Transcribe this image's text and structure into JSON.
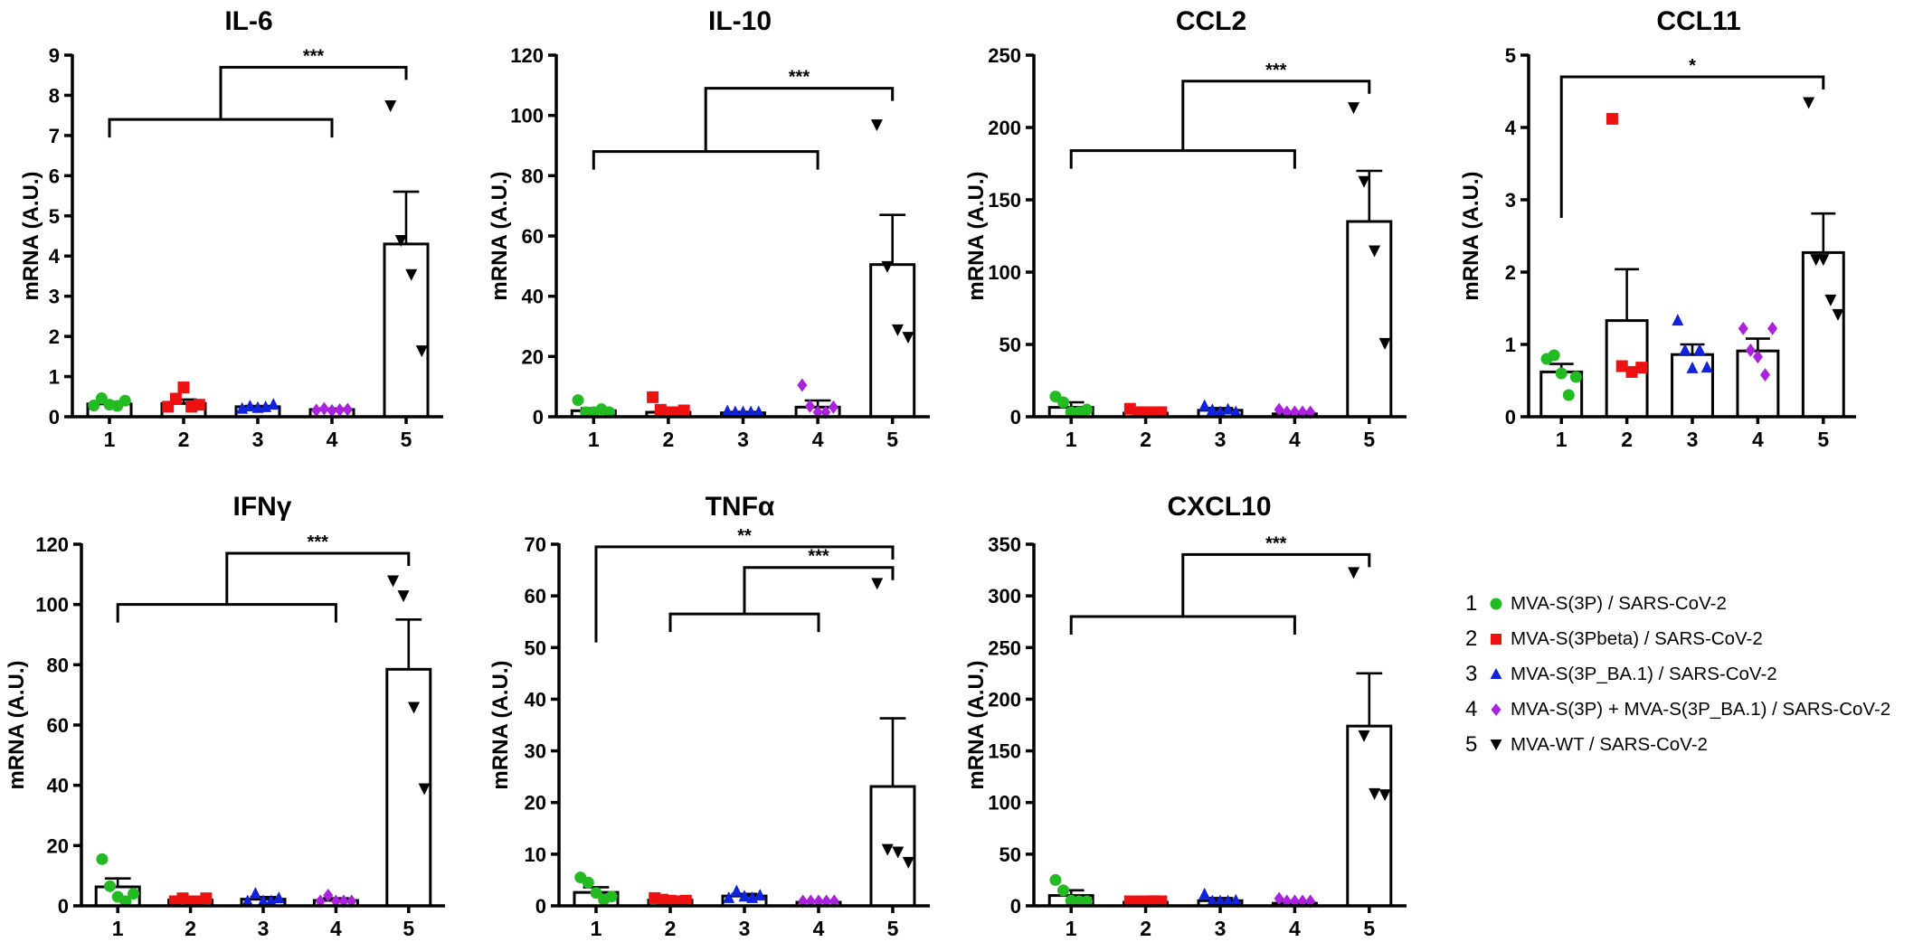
{
  "colors": {
    "1": "#22bb22",
    "2": "#ee1111",
    "3": "#1122dd",
    "4": "#aa22dd",
    "5": "#000000"
  },
  "legend": {
    "items": [
      {
        "num": "1",
        "marker": "circle",
        "label": "MVA-S(3P) / SARS-CoV-2"
      },
      {
        "num": "2",
        "marker": "square",
        "label": "MVA-S(3Pbeta) / SARS-CoV-2"
      },
      {
        "num": "3",
        "marker": "triangle-up",
        "label": "MVA-S(3P_BA.1) / SARS-CoV-2"
      },
      {
        "num": "4",
        "marker": "diamond",
        "label": "MVA-S(3P) + MVA-S(3P_BA.1) / SARS-CoV-2"
      },
      {
        "num": "5",
        "marker": "triangle-down",
        "label": "MVA-WT / SARS-CoV-2"
      }
    ]
  },
  "chart_data": [
    {
      "type": "bar",
      "title": "IL-6",
      "ylabel": "mRNA (A.U.)",
      "xlabel": "",
      "categories": [
        "1",
        "2",
        "3",
        "4",
        "5"
      ],
      "ylim": [
        0,
        9
      ],
      "yticks": [
        "0",
        "1",
        "2",
        "3",
        "4",
        "5",
        "6",
        "7",
        "8",
        "9"
      ],
      "means": [
        0.32,
        0.33,
        0.25,
        0.18,
        4.3
      ],
      "sem": [
        0.05,
        0.1,
        0.02,
        0.02,
        1.3
      ],
      "points": [
        [
          0.28,
          0.46,
          0.3,
          0.27,
          0.4
        ],
        [
          0.25,
          0.45,
          0.73,
          0.25,
          0.3
        ],
        [
          0.2,
          0.26,
          0.22,
          0.24,
          0.3
        ],
        [
          0.16,
          0.2,
          0.15,
          0.17,
          0.18
        ],
        [
          7.75,
          4.4,
          3.55,
          1.65
        ]
      ],
      "comparisons": [
        {
          "type": "grouped",
          "group": [
            "1",
            "4"
          ],
          "target": "5",
          "label": "***",
          "group_y": 7.4,
          "top_y": 8.7
        }
      ]
    },
    {
      "type": "bar",
      "title": "IL-10",
      "ylabel": "mRNA (A.U.)",
      "xlabel": "",
      "categories": [
        "1",
        "2",
        "3",
        "4",
        "5"
      ],
      "ylim": [
        0,
        120
      ],
      "yticks": [
        "0",
        "20",
        "40",
        "60",
        "80",
        "100",
        "120"
      ],
      "means": [
        2,
        1.5,
        1.3,
        3.2,
        50.5
      ],
      "sem": [
        0.8,
        1.5,
        0.3,
        2.2,
        16.5
      ],
      "points": [
        [
          5.5,
          1.5,
          1.2,
          2.5,
          1.2
        ],
        [
          6.5,
          2.3,
          0.8,
          0.9,
          2.1
        ],
        [
          1.8,
          1.4,
          1.2,
          1.0,
          1.5
        ],
        [
          10.5,
          3.5,
          1.0,
          0.6,
          3.2
        ],
        [
          97,
          50,
          29,
          26.5
        ]
      ],
      "comparisons": [
        {
          "type": "grouped",
          "group": [
            "1",
            "4"
          ],
          "target": "5",
          "label": "***",
          "group_y": 88,
          "top_y": 109
        }
      ]
    },
    {
      "type": "bar",
      "title": "CCL2",
      "ylabel": "mRNA (A.U.)",
      "xlabel": "",
      "categories": [
        "1",
        "2",
        "3",
        "4",
        "5"
      ],
      "ylim": [
        0,
        250
      ],
      "yticks": [
        "0",
        "50",
        "100",
        "150",
        "200",
        "250"
      ],
      "means": [
        6.5,
        2.5,
        4.5,
        2,
        135
      ],
      "sem": [
        3.5,
        1,
        1.5,
        0.5,
        35
      ],
      "points": [
        [
          14,
          10,
          3,
          2,
          5
        ],
        [
          5.5,
          1.5,
          1,
          2.5,
          1.5
        ],
        [
          7.5,
          4.5,
          2.5,
          5,
          3
        ],
        [
          5,
          2.5,
          1.5,
          1,
          1
        ],
        [
          214,
          163,
          115,
          51
        ]
      ],
      "comparisons": [
        {
          "type": "grouped",
          "group": [
            "1",
            "4"
          ],
          "target": "5",
          "label": "***",
          "group_y": 184,
          "top_y": 232
        }
      ]
    },
    {
      "type": "bar",
      "title": "CCL11",
      "ylabel": "mRNA (A.U.)",
      "xlabel": "",
      "categories": [
        "1",
        "2",
        "3",
        "4",
        "5"
      ],
      "ylim": [
        0,
        5
      ],
      "yticks": [
        "0",
        "1",
        "2",
        "3",
        "4",
        "5"
      ],
      "means": [
        0.62,
        1.33,
        0.86,
        0.91,
        2.27
      ],
      "sem": [
        0.11,
        0.71,
        0.14,
        0.17,
        0.54
      ],
      "points": [
        [
          0.8,
          0.85,
          0.6,
          0.3,
          0.55
        ],
        [
          4.12,
          0.7,
          0.62,
          0.68
        ],
        [
          1.33,
          0.92,
          0.67,
          0.92,
          0.68
        ],
        [
          1.22,
          0.92,
          0.83,
          0.58,
          1.22
        ],
        [
          4.35,
          2.18,
          2.18,
          1.62,
          1.42
        ]
      ],
      "comparisons": [
        {
          "type": "simple",
          "from": "1",
          "to": "5",
          "label": "*",
          "y": 4.7,
          "left_bottom_y": 2.75
        }
      ]
    },
    {
      "type": "bar",
      "title": "IFNγ",
      "ylabel": "mRNA (A.U.)",
      "xlabel": "",
      "categories": [
        "1",
        "2",
        "3",
        "4",
        "5"
      ],
      "ylim": [
        0,
        120
      ],
      "yticks": [
        "0",
        "20",
        "40",
        "60",
        "80",
        "100",
        "120"
      ],
      "means": [
        6.3,
        1.9,
        2.2,
        1.8,
        78.5
      ],
      "sem": [
        2.8,
        0.4,
        0.7,
        0.7,
        16.5
      ],
      "points": [
        [
          15.5,
          6.5,
          3,
          0.5,
          4
        ],
        [
          1.5,
          2.5,
          1.5,
          1,
          2.5
        ],
        [
          1.5,
          4,
          1.5,
          1.5,
          2.5
        ],
        [
          1.5,
          3.5,
          1,
          0.8,
          1.5
        ],
        [
          108,
          103,
          66,
          39
        ]
      ],
      "comparisons": [
        {
          "type": "grouped",
          "group": [
            "1",
            "4"
          ],
          "target": "5",
          "label": "***",
          "group_y": 100,
          "top_y": 117
        }
      ]
    },
    {
      "type": "bar",
      "title": "TNFα",
      "ylabel": "mRNA (A.U.)",
      "xlabel": "",
      "categories": [
        "1",
        "2",
        "3",
        "4",
        "5"
      ],
      "ylim": [
        0,
        70
      ],
      "yticks": [
        "0",
        "10",
        "20",
        "30",
        "40",
        "50",
        "60",
        "70"
      ],
      "means": [
        2.6,
        1.1,
        1.9,
        0.7,
        23.1
      ],
      "sem": [
        1.0,
        0.2,
        0.4,
        0.1,
        13.2
      ],
      "points": [
        [
          5.5,
          4.5,
          2.5,
          1.2,
          1.8
        ],
        [
          1.5,
          1.2,
          1,
          0.8,
          1
        ],
        [
          1.5,
          2.8,
          1.8,
          1.5,
          2
        ],
        [
          0.6,
          0.8,
          0.7,
          0.5,
          0.9
        ],
        [
          62.5,
          11,
          10.5,
          8.5
        ]
      ],
      "comparisons": [
        {
          "type": "simple",
          "from": "1",
          "to": "5",
          "label": "**",
          "y": 69.5,
          "left_bottom_y": 51
        },
        {
          "type": "grouped",
          "group": [
            "2",
            "4"
          ],
          "target": "5",
          "label": "***",
          "group_y": 56.5,
          "top_y": 65.5
        }
      ]
    },
    {
      "type": "bar",
      "title": "CXCL10",
      "ylabel": "mRNA (A.U.)",
      "xlabel": "",
      "categories": [
        "1",
        "2",
        "3",
        "4",
        "5"
      ],
      "ylim": [
        0,
        350
      ],
      "yticks": [
        "0",
        "50",
        "100",
        "150",
        "200",
        "250",
        "300",
        "350"
      ],
      "means": [
        10,
        3.5,
        5,
        2.5,
        174
      ],
      "sem": [
        5,
        1,
        2.5,
        1,
        51
      ],
      "points": [
        [
          25,
          15,
          5,
          2,
          3
        ],
        [
          4,
          3,
          2,
          4.5,
          3
        ],
        [
          11,
          3.5,
          2,
          3,
          5
        ],
        [
          7,
          3,
          1,
          1.5,
          1
        ],
        [
          323,
          165,
          109,
          108
        ]
      ],
      "comparisons": [
        {
          "type": "grouped",
          "group": [
            "1",
            "4"
          ],
          "target": "5",
          "label": "***",
          "group_y": 280,
          "top_y": 340
        }
      ]
    }
  ]
}
